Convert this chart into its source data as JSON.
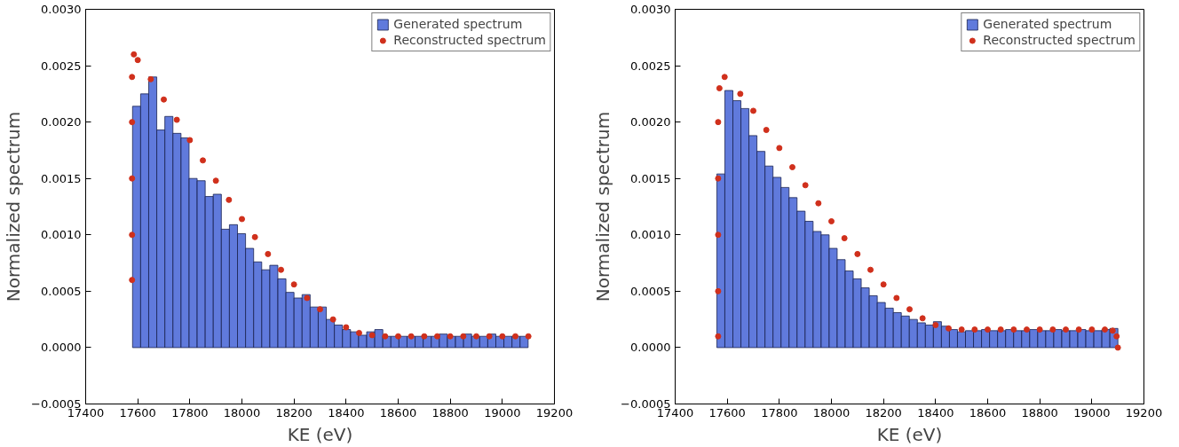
{
  "chart_data": [
    {
      "type": "histogram",
      "xlabel": "KE (eV)",
      "ylabel": "Normalized spectrum",
      "xlim": [
        17400,
        19200
      ],
      "ylim": [
        -0.0005,
        0.003
      ],
      "xticks": [
        17400,
        17600,
        17800,
        18000,
        18200,
        18400,
        18600,
        18800,
        19000,
        19200
      ],
      "yticks": [
        {
          "value": -0.0005,
          "label": "−0.0005"
        },
        {
          "value": 0,
          "label": "0.0000"
        },
        {
          "value": 0.0005,
          "label": "0.0005"
        },
        {
          "value": 0.001,
          "label": "0.0010"
        },
        {
          "value": 0.0015,
          "label": "0.0015"
        },
        {
          "value": 0.002,
          "label": "0.0020"
        },
        {
          "value": 0.0025,
          "label": "0.0025"
        },
        {
          "value": 0.003,
          "label": "0.0030"
        }
      ],
      "legend": "top right",
      "grid": false,
      "series": [
        {
          "name": "Generated spectrum",
          "type": "histogram",
          "color": "#4f6bd8",
          "bins": [
            17580,
            17611,
            17642,
            17673,
            17704,
            17735,
            17766,
            17797,
            17828,
            17859,
            17890,
            17921,
            17952,
            17983,
            18014,
            18045,
            18076,
            18107,
            18138,
            18169,
            18200,
            18231,
            18262,
            18293,
            18324,
            18355,
            18386,
            18417,
            18448,
            18479,
            18510,
            18541,
            18572,
            18603,
            18634,
            18665,
            18696,
            18727,
            18758,
            18789,
            18820,
            18851,
            18882,
            18913,
            18944,
            18975,
            19006,
            19037,
            19068,
            19099
          ],
          "values": [
            0.00214,
            0.00225,
            0.0024,
            0.00193,
            0.00205,
            0.0019,
            0.00186,
            0.0015,
            0.00148,
            0.00134,
            0.00136,
            0.00105,
            0.00109,
            0.00101,
            0.00088,
            0.00076,
            0.00069,
            0.00073,
            0.00061,
            0.00049,
            0.00044,
            0.00047,
            0.00036,
            0.00036,
            0.00025,
            0.0002,
            0.00016,
            0.00014,
            0.00011,
            0.00014,
            0.00016,
            0.0001,
            0.0001,
            0.0001,
            0.0001,
            0.0001,
            0.0001,
            0.0001,
            0.00012,
            0.0001,
            0.0001,
            0.00012,
            0.0001,
            0.0001,
            0.00012,
            0.0001,
            0.0001,
            0.0001,
            0.0001
          ]
        },
        {
          "name": "Reconstructed spectrum",
          "type": "scatter",
          "marker": "circle",
          "color": "#d0301c",
          "x": [
            17578,
            17578,
            17578,
            17578,
            17578,
            17585,
            17600,
            17650,
            17700,
            17750,
            17800,
            17850,
            17900,
            17950,
            18000,
            18050,
            18100,
            18150,
            18200,
            18250,
            18300,
            18350,
            18400,
            18450,
            18500,
            18550,
            18600,
            18650,
            18700,
            18750,
            18800,
            18850,
            18900,
            18950,
            19000,
            19050,
            19100
          ],
          "values": [
            0.0006,
            0.001,
            0.0015,
            0.002,
            0.0024,
            0.0026,
            0.00255,
            0.00238,
            0.0022,
            0.00202,
            0.00184,
            0.00166,
            0.00148,
            0.00131,
            0.00114,
            0.00098,
            0.00083,
            0.00069,
            0.00056,
            0.00044,
            0.00034,
            0.00025,
            0.00018,
            0.00013,
            0.00011,
            0.0001,
            0.0001,
            0.0001,
            0.0001,
            0.0001,
            0.0001,
            0.0001,
            0.0001,
            0.0001,
            0.0001,
            0.0001,
            0.0001
          ]
        }
      ]
    },
    {
      "type": "histogram",
      "xlabel": "KE (eV)",
      "ylabel": "Normalized spectrum",
      "xlim": [
        17400,
        19200
      ],
      "ylim": [
        -0.0005,
        0.003
      ],
      "xticks": [
        17400,
        17600,
        17800,
        18000,
        18200,
        18400,
        18600,
        18800,
        19000,
        19200
      ],
      "yticks": [
        {
          "value": -0.0005,
          "label": "−0.0005"
        },
        {
          "value": 0,
          "label": "0.0000"
        },
        {
          "value": 0.0005,
          "label": "0.0005"
        },
        {
          "value": 0.001,
          "label": "0.0010"
        },
        {
          "value": 0.0015,
          "label": "0.0015"
        },
        {
          "value": 0.002,
          "label": "0.0020"
        },
        {
          "value": 0.0025,
          "label": "0.0025"
        },
        {
          "value": 0.003,
          "label": "0.0030"
        }
      ],
      "legend": "top right",
      "grid": false,
      "series": [
        {
          "name": "Generated spectrum",
          "type": "histogram",
          "color": "#4f6bd8",
          "bins": [
            17560,
            17590.8,
            17621.6,
            17652.4,
            17683.2,
            17714,
            17744.8,
            17775.6,
            17806.4,
            17837.2,
            17868,
            17898.8,
            17929.6,
            17960.4,
            17991.2,
            18022,
            18052.8,
            18083.6,
            18114.4,
            18145.2,
            18176,
            18206.8,
            18237.6,
            18268.4,
            18299.2,
            18330,
            18360.8,
            18391.6,
            18422.4,
            18453.2,
            18484,
            18514.8,
            18545.6,
            18576.4,
            18607.2,
            18638,
            18668.8,
            18699.6,
            18730.4,
            18761.2,
            18792,
            18822.8,
            18853.6,
            18884.4,
            18915.2,
            18946,
            18976.8,
            19007.6,
            19038.4,
            19069.2,
            19100
          ],
          "values": [
            0.00154,
            0.00228,
            0.00219,
            0.00212,
            0.00188,
            0.00174,
            0.00161,
            0.00151,
            0.00142,
            0.00133,
            0.00121,
            0.00112,
            0.00103,
            0.001,
            0.00088,
            0.00078,
            0.00068,
            0.00061,
            0.00053,
            0.00046,
            0.0004,
            0.00035,
            0.00031,
            0.00028,
            0.00025,
            0.00022,
            0.0002,
            0.00023,
            0.00019,
            0.00016,
            0.00014,
            0.00015,
            0.00015,
            0.00016,
            0.00015,
            0.00015,
            0.00016,
            0.00015,
            0.00015,
            0.00016,
            0.00015,
            0.00015,
            0.00016,
            0.00015,
            0.00015,
            0.00016,
            0.00015,
            0.00015,
            0.00016,
            0.00017
          ]
        },
        {
          "name": "Reconstructed spectrum",
          "type": "scatter",
          "marker": "circle",
          "color": "#d0301c",
          "x": [
            17565,
            17565,
            17565,
            17565,
            17565,
            17570,
            17590,
            17650,
            17700,
            17750,
            17800,
            17850,
            17900,
            17950,
            18000,
            18050,
            18100,
            18150,
            18200,
            18250,
            18300,
            18350,
            18400,
            18450,
            18500,
            18550,
            18600,
            18650,
            18700,
            18750,
            18800,
            18850,
            18900,
            18950,
            19000,
            19050,
            19080,
            19095,
            19100
          ],
          "values": [
            0.0001,
            0.0005,
            0.001,
            0.0015,
            0.002,
            0.0023,
            0.0024,
            0.00225,
            0.0021,
            0.00193,
            0.00177,
            0.0016,
            0.00144,
            0.00128,
            0.00112,
            0.00097,
            0.00083,
            0.00069,
            0.00056,
            0.00044,
            0.00034,
            0.00026,
            0.0002,
            0.00017,
            0.00016,
            0.00016,
            0.00016,
            0.00016,
            0.00016,
            0.00016,
            0.00016,
            0.00016,
            0.00016,
            0.00016,
            0.00016,
            0.00016,
            0.00015,
            0.0001,
            0.0
          ]
        }
      ]
    }
  ]
}
